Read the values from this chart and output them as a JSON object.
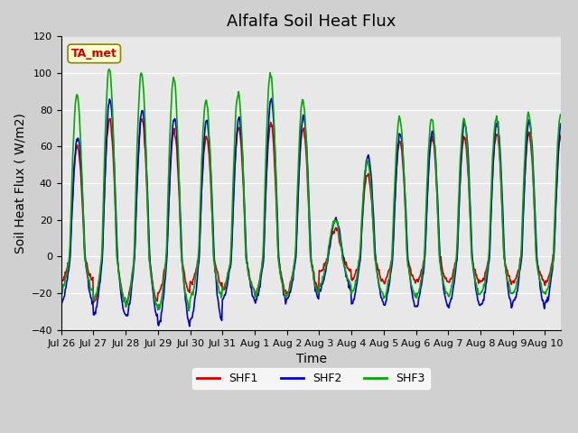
{
  "title": "Alfalfa Soil Heat Flux",
  "xlabel": "Time",
  "ylabel": "Soil Heat Flux ( W/m2)",
  "ylim": [
    -40,
    120
  ],
  "xlim_days": 15.5,
  "background_color": "#e8e8e8",
  "plot_bg_color": "#e8e8e8",
  "shf1_color": "#cc0000",
  "shf2_color": "#0000cc",
  "shf3_color": "#00aa00",
  "legend_labels": [
    "SHF1",
    "SHF2",
    "SHF3"
  ],
  "annotation_text": "TA_met",
  "annotation_color": "#cc0000",
  "annotation_bg": "#ffffcc",
  "tick_labels": [
    "Jul 26",
    "Jul 27",
    "Jul 28",
    "Jul 29",
    "Jul 30",
    "Jul 31",
    "Aug 1",
    "Aug 2",
    "Aug 3",
    "Aug 4",
    "Aug 5",
    "Aug 6",
    "Aug 7",
    "Aug 8",
    "Aug 9",
    "Aug 10"
  ],
  "tick_positions": [
    0,
    1,
    2,
    3,
    4,
    5,
    6,
    7,
    8,
    9,
    10,
    11,
    12,
    13,
    14,
    15
  ],
  "linewidth": 1.2,
  "title_fontsize": 13,
  "label_fontsize": 10,
  "tick_fontsize": 8,
  "legend_fontsize": 9
}
